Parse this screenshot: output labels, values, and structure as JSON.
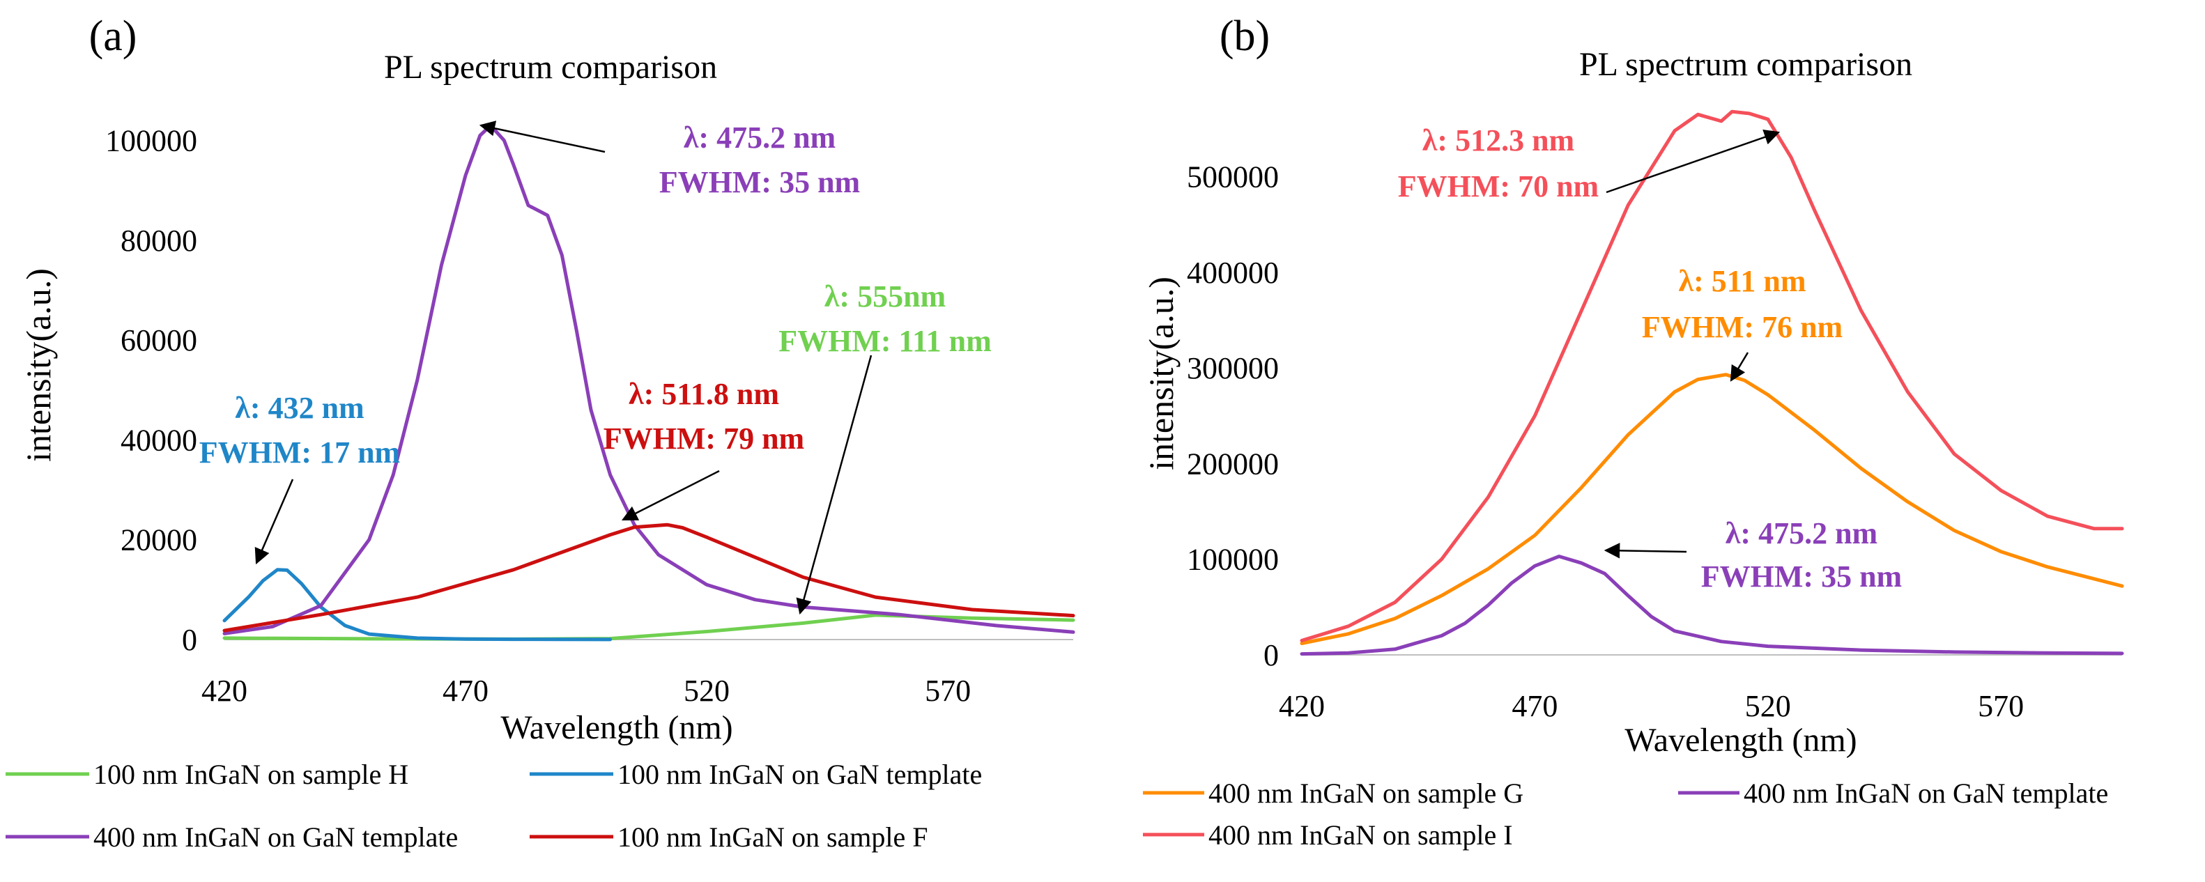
{
  "chart_data": [
    {
      "panel_label": "(a)",
      "type": "line",
      "title": "PL spectrum comparison",
      "xlabel": "Wavelength  (nm)",
      "ylabel": "intensity(a.u.)",
      "xlim": [
        420,
        596
      ],
      "ylim": [
        0,
        110000
      ],
      "xticks": [
        420,
        470,
        520,
        570
      ],
      "xtick_labels": [
        "420",
        "470",
        "520",
        "570"
      ],
      "yticks": [
        0,
        20000,
        40000,
        60000,
        80000,
        100000
      ],
      "ytick_labels": [
        "0",
        "20000",
        "40000",
        "60000",
        "80000",
        "100000"
      ],
      "grid": false,
      "legend_position": "bottom",
      "series": [
        {
          "name": "100 nm InGaN on sample H",
          "color": "#70d050",
          "x": [
            420,
            450,
            480,
            500,
            520,
            540,
            555,
            575,
            596
          ],
          "y": [
            300,
            150,
            80,
            200,
            1600,
            3300,
            4900,
            4300,
            3900
          ]
        },
        {
          "name": "100 nm InGaN on GaN template",
          "color": "#1f86c8",
          "x": [
            420,
            425,
            428,
            431,
            433,
            436,
            440,
            445,
            450,
            460,
            470,
            480,
            490,
            500
          ],
          "y": [
            3800,
            8500,
            11800,
            14000,
            13900,
            11200,
            6500,
            2800,
            1100,
            300,
            100,
            50,
            30,
            20
          ]
        },
        {
          "name": "400 nm InGaN on GaN template",
          "color": "#8a3fb8",
          "x": [
            420,
            430,
            440,
            450,
            455,
            460,
            465,
            470,
            473,
            475.2,
            478,
            480,
            483,
            487,
            490,
            493,
            496,
            500,
            505,
            510,
            520,
            530,
            540,
            560,
            580,
            596
          ],
          "y": [
            1200,
            2600,
            6800,
            20000,
            33000,
            52000,
            75000,
            93000,
            101000,
            103000,
            100000,
            95000,
            87000,
            85000,
            77000,
            62000,
            46000,
            33000,
            23000,
            17000,
            11000,
            8000,
            6500,
            5000,
            2800,
            1500
          ]
        },
        {
          "name": "100 nm InGaN on sample F",
          "color": "#cc0f0f",
          "x": [
            420,
            440,
            460,
            480,
            490,
            500,
            505,
            511.8,
            515,
            520,
            530,
            540,
            555,
            575,
            596
          ],
          "y": [
            1800,
            5000,
            8500,
            14000,
            17500,
            21000,
            22500,
            23000,
            22400,
            20500,
            16500,
            12500,
            8500,
            6000,
            4800
          ]
        }
      ],
      "annotations": [
        {
          "lines": [
            "λ: 475.2 nm",
            "FWHM:  35 nm"
          ],
          "color": "#8a3fb8"
        },
        {
          "lines": [
            "λ: 555nm",
            "FWHM:  111 nm"
          ],
          "color": "#70d050"
        },
        {
          "lines": [
            "λ: 432 nm",
            "FWHM:  17 nm"
          ],
          "color": "#1f86c8"
        },
        {
          "lines": [
            "λ: 511.8 nm",
            "FWHM:  79 nm"
          ],
          "color": "#cc0f0f"
        }
      ]
    },
    {
      "panel_label": "(b)",
      "type": "line",
      "title": "PL spectrum comparison",
      "xlabel": "Wavelength  (nm)",
      "ylabel": "intensity(a.u.)",
      "xlim": [
        420,
        596
      ],
      "ylim": [
        0,
        590000
      ],
      "xticks": [
        420,
        470,
        520,
        570
      ],
      "xtick_labels": [
        "420",
        "470",
        "520",
        "570"
      ],
      "yticks": [
        0,
        100000,
        200000,
        300000,
        400000,
        500000
      ],
      "ytick_labels": [
        "0",
        "100000",
        "200000",
        "300000",
        "400000",
        "500000"
      ],
      "grid": false,
      "legend_position": "bottom",
      "series": [
        {
          "name": "400 nm InGaN on sample G",
          "color": "#ff8c00",
          "x": [
            420,
            430,
            440,
            450,
            460,
            470,
            480,
            490,
            500,
            505,
            511,
            515,
            520,
            530,
            540,
            550,
            560,
            570,
            580,
            596
          ],
          "y": [
            12000,
            22000,
            38000,
            62000,
            90000,
            125000,
            175000,
            230000,
            275000,
            288000,
            293000,
            287000,
            272000,
            235000,
            195000,
            160000,
            130000,
            108000,
            92000,
            72000
          ]
        },
        {
          "name": "400 nm InGaN on GaN template",
          "color": "#8a3fb8",
          "x": [
            420,
            430,
            440,
            450,
            455,
            460,
            465,
            470,
            475.2,
            480,
            485,
            490,
            495,
            500,
            510,
            520,
            540,
            560,
            580,
            596
          ],
          "y": [
            1000,
            2000,
            6000,
            20000,
            33000,
            52000,
            75000,
            93000,
            103000,
            96000,
            85000,
            62000,
            40000,
            25000,
            14000,
            9000,
            5000,
            3000,
            2000,
            1500
          ]
        },
        {
          "name": "400 nm InGaN on sample I",
          "color": "#f4505a",
          "x": [
            420,
            430,
            440,
            450,
            460,
            470,
            480,
            490,
            500,
            505,
            510,
            512.3,
            516,
            520,
            525,
            530,
            540,
            550,
            560,
            570,
            580,
            590,
            596
          ],
          "y": [
            15000,
            30000,
            55000,
            100000,
            165000,
            250000,
            360000,
            470000,
            548000,
            565000,
            558000,
            568000,
            566000,
            560000,
            520000,
            465000,
            360000,
            275000,
            210000,
            172000,
            145000,
            132000,
            132000
          ]
        }
      ],
      "annotations": [
        {
          "lines": [
            "λ: 512.3 nm",
            "FWHM:  70 nm"
          ],
          "color": "#f4505a"
        },
        {
          "lines": [
            "λ: 511 nm",
            "FWHM:  76 nm"
          ],
          "color": "#ff8c00"
        },
        {
          "lines": [
            "λ: 475.2 nm",
            "FWHM:  35 nm"
          ],
          "color": "#8a3fb8"
        }
      ]
    }
  ]
}
